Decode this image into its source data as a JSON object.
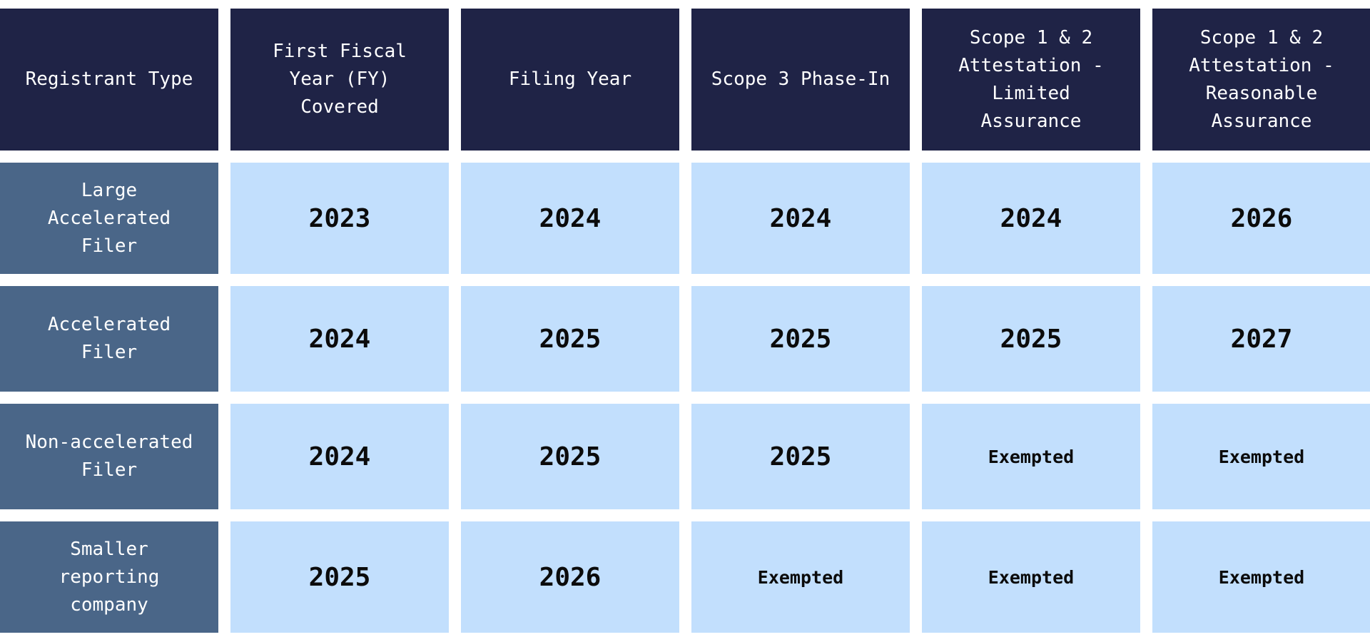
{
  "table": {
    "headers": [
      "Registrant Type",
      "First Fiscal\nYear (FY)\nCovered",
      "Filing Year",
      "Scope 3 Phase-In",
      "Scope 1 & 2\nAttestation -\nLimited\nAssurance",
      "Scope 1 & 2\nAttestation -\nReasonable\nAssurance"
    ],
    "rows": [
      {
        "type": "Large\nAccelerated\nFiler",
        "first_fy": "2023",
        "filing_year": "2024",
        "scope3": "2024",
        "limited": "2024",
        "reasonable": "2026"
      },
      {
        "type": "Accelerated\nFiler",
        "first_fy": "2024",
        "filing_year": "2025",
        "scope3": "2025",
        "limited": "2025",
        "reasonable": "2027"
      },
      {
        "type": "Non-accelerated\nFiler",
        "first_fy": "2024",
        "filing_year": "2025",
        "scope3": "2025",
        "limited": "Exempted",
        "reasonable": "Exempted"
      },
      {
        "type": "Smaller\nreporting\ncompany",
        "first_fy": "2025",
        "filing_year": "2026",
        "scope3": "Exempted",
        "limited": "Exempted",
        "reasonable": "Exempted"
      }
    ]
  },
  "colors": {
    "header_bg": "#1f2346",
    "type_bg": "#4a6688",
    "value_bg": "#c2dffd"
  }
}
